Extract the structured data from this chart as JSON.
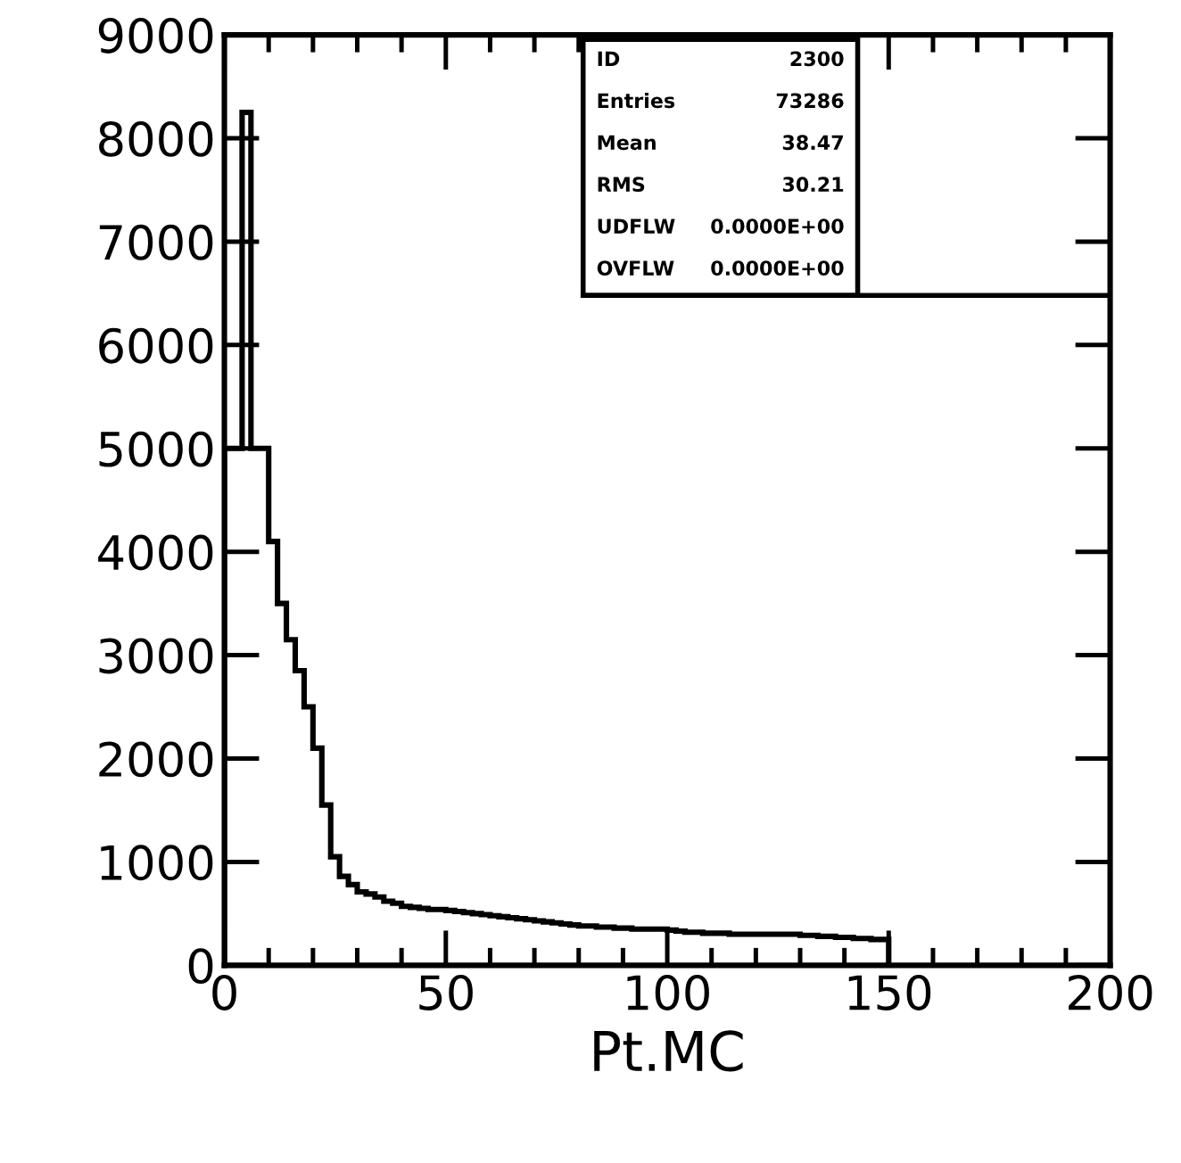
{
  "chart_data": {
    "type": "histogram",
    "xlabel": "Pt.MC",
    "bins": [
      0,
      2,
      4,
      6,
      8,
      10,
      12,
      14,
      16,
      18,
      20,
      22,
      24,
      26,
      28,
      30,
      32,
      34,
      36,
      38,
      40,
      42,
      44,
      46,
      48,
      50,
      52,
      54,
      56,
      58,
      60,
      62,
      64,
      66,
      68,
      70,
      72,
      74,
      76,
      78,
      80,
      82,
      84,
      86,
      88,
      90,
      92,
      94,
      96,
      98,
      100,
      102,
      104,
      106,
      108,
      110,
      112,
      114,
      116,
      118,
      120,
      122,
      124,
      126,
      128,
      130,
      132,
      134,
      136,
      138,
      140,
      142,
      144,
      146,
      148,
      150
    ],
    "values": [
      5000,
      5000,
      8250,
      5000,
      5000,
      4100,
      3500,
      3150,
      2850,
      2500,
      2100,
      1550,
      1050,
      860,
      780,
      710,
      690,
      660,
      620,
      600,
      570,
      560,
      550,
      540,
      540,
      530,
      520,
      510,
      500,
      490,
      480,
      470,
      460,
      450,
      440,
      430,
      420,
      410,
      400,
      390,
      380,
      380,
      370,
      370,
      360,
      360,
      350,
      350,
      350,
      350,
      340,
      330,
      320,
      320,
      310,
      310,
      310,
      300,
      300,
      300,
      300,
      300,
      300,
      300,
      300,
      290,
      290,
      280,
      280,
      270,
      270,
      260,
      260,
      250,
      250
    ],
    "color": "#000000",
    "xlim": [
      0,
      200
    ],
    "xticks": [
      0,
      {
        "value": 10,
        "label": null
      },
      {
        "value": 20,
        "label": null
      },
      {
        "value": 30,
        "label": null
      },
      {
        "value": 40,
        "label": null
      },
      50,
      {
        "value": 60,
        "label": null
      },
      {
        "value": 70,
        "label": null
      },
      {
        "value": 80,
        "label": null
      },
      {
        "value": 90,
        "label": null
      },
      100,
      {
        "value": 110,
        "label": null
      },
      {
        "value": 120,
        "label": null
      },
      {
        "value": 130,
        "label": null
      },
      {
        "value": 140,
        "label": null
      },
      150,
      {
        "value": 160,
        "label": null
      },
      {
        "value": 170,
        "label": null
      },
      {
        "value": 180,
        "label": null
      },
      {
        "value": 190,
        "label": null
      },
      200
    ],
    "ylim": [
      0,
      9000
    ],
    "yticks": [
      0,
      1000,
      2000,
      3000,
      4000,
      5000,
      6000,
      7000,
      8000,
      9000
    ],
    "grid": false,
    "annotations": [
      "ID",
      "2300",
      "Entries",
      "73286",
      "Mean",
      "38.47",
      "RMS",
      "30.21",
      "UDFLW",
      "0.0000E+00",
      "OVFLW",
      "0.0000E+00"
    ]
  }
}
